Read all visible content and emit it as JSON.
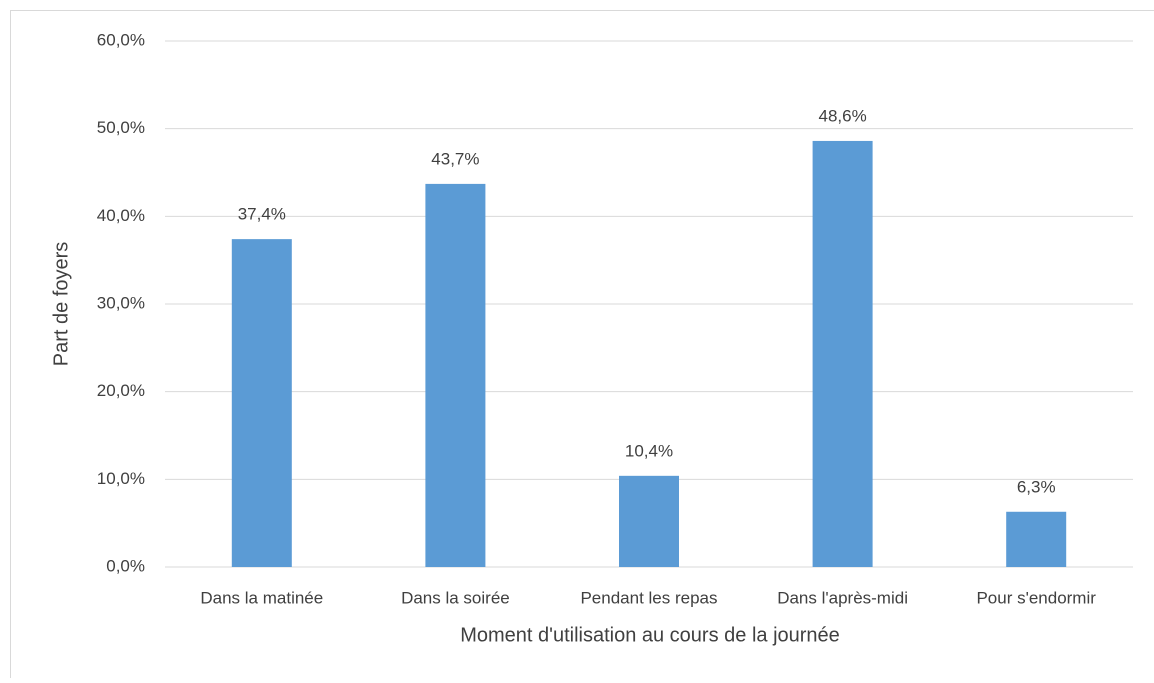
{
  "chart_data": {
    "type": "bar",
    "x_label": "Moment d'utilisation au cours de la journée",
    "y_label": "Part de foyers",
    "categories": [
      "Dans la matinée",
      "Dans la soirée",
      "Pendant les repas",
      "Dans l'après-midi",
      "Pour s'endormir"
    ],
    "values": [
      37.4,
      43.7,
      10.4,
      48.6,
      6.3
    ],
    "value_labels": [
      "37,4%",
      "43,7%",
      "10,4%",
      "48,6%",
      "6,3%"
    ],
    "color": "#5b9bd5",
    "ylim": [
      0,
      60
    ],
    "yticks": [
      {
        "value": 0,
        "label": "0,0%"
      },
      {
        "value": 10,
        "label": "10,0%"
      },
      {
        "value": 20,
        "label": "20,0%"
      },
      {
        "value": 30,
        "label": "30,0%"
      },
      {
        "value": 40,
        "label": "40,0%"
      },
      {
        "value": 50,
        "label": "50,0%"
      },
      {
        "value": 60,
        "label": "60,0%"
      }
    ],
    "grid": true
  }
}
